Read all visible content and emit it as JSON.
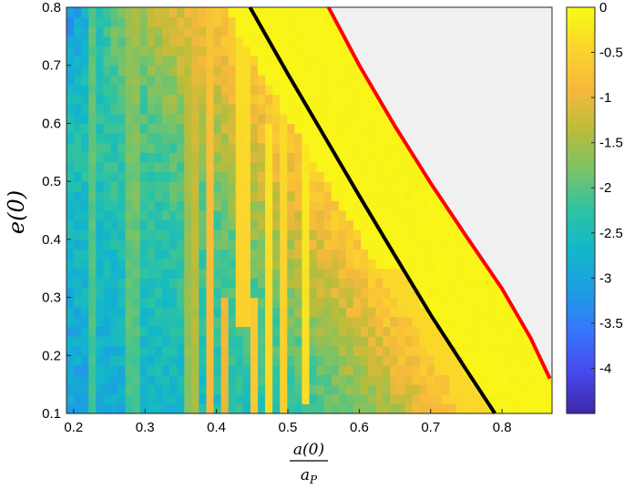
{
  "chart_data": {
    "type": "heatmap",
    "title": "",
    "xlabel": {
      "numerator": "a(0)",
      "denominator": "a_P"
    },
    "ylabel": "e(0)",
    "xlim": [
      0.19,
      0.87
    ],
    "ylim": [
      0.1,
      0.8
    ],
    "x_ticks": [
      0.2,
      0.3,
      0.4,
      0.5,
      0.6,
      0.7,
      0.8
    ],
    "y_ticks": [
      0.1,
      0.2,
      0.3,
      0.4,
      0.5,
      0.6,
      0.7,
      0.8
    ],
    "x_tick_labels": [
      "0.2",
      "0.3",
      "0.4",
      "0.5",
      "0.6",
      "0.7",
      "0.8"
    ],
    "y_tick_labels": [
      "0.1",
      "0.2",
      "0.3",
      "0.4",
      "0.5",
      "0.6",
      "0.7",
      "0.8"
    ],
    "colorbar": {
      "colormap": "parula",
      "range": [
        -4.5,
        0
      ],
      "ticks": [
        0,
        -0.5,
        -1,
        -1.5,
        -2,
        -2.5,
        -3,
        -3.5,
        -4
      ],
      "tick_labels": [
        "0",
        "-0.5",
        "-1",
        "-1.5",
        "-2",
        "-2.5",
        "-3",
        "-3.5",
        "-4"
      ]
    },
    "grid_resolution": {
      "x_cells": 66,
      "y_cells": 42
    },
    "no_data_color": "#f0f0f0",
    "lines": [
      {
        "name": "",
        "color": "#000000",
        "points": [
          [
            0.447,
            0.8
          ],
          [
            0.5,
            0.685
          ],
          [
            0.55,
            0.58
          ],
          [
            0.6,
            0.475
          ],
          [
            0.65,
            0.372
          ],
          [
            0.7,
            0.27
          ],
          [
            0.75,
            0.175
          ],
          [
            0.79,
            0.1
          ]
        ]
      },
      {
        "name": "",
        "color": "#ff0000",
        "points": [
          [
            0.557,
            0.8
          ],
          [
            0.6,
            0.7
          ],
          [
            0.65,
            0.595
          ],
          [
            0.7,
            0.497
          ],
          [
            0.75,
            0.405
          ],
          [
            0.8,
            0.315
          ],
          [
            0.84,
            0.23
          ],
          [
            0.867,
            0.16
          ]
        ]
      }
    ]
  }
}
